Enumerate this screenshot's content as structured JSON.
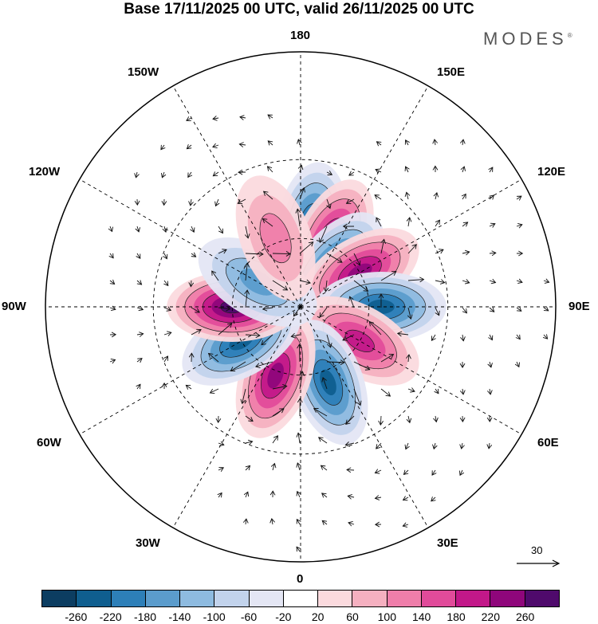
{
  "header": {
    "title": "Base 17/11/2025 00 UTC, valid 26/11/2025 00 UTC",
    "brand": "MODES",
    "brand_mark": "®"
  },
  "map": {
    "projection": "north-polar-stereographic",
    "longitude_labels": {
      "lon_180": "180",
      "lon_150e": "150E",
      "lon_120e": "120E",
      "lon_90e": "90E",
      "lon_60e": "60E",
      "lon_30e": "30E",
      "lon_0": "0",
      "lon_30w": "30W",
      "lon_60w": "60W",
      "lon_90w": "90W",
      "lon_120w": "120W",
      "lon_150w": "150W"
    },
    "anomaly_centres": [
      {
        "sign": "negative",
        "lon_deg": 172,
        "lat_deg": 55,
        "magnitude": -240
      },
      {
        "sign": "positive",
        "lon_deg": 155,
        "lat_deg": 58,
        "magnitude": 240
      },
      {
        "sign": "negative",
        "lon_deg": 140,
        "lat_deg": 67,
        "magnitude": -240
      },
      {
        "sign": "positive",
        "lon_deg": 120,
        "lat_deg": 60,
        "magnitude": 240
      },
      {
        "sign": "negative",
        "lon_deg": 90,
        "lat_deg": 55,
        "magnitude": -240
      },
      {
        "sign": "positive",
        "lon_deg": 60,
        "lat_deg": 60,
        "magnitude": 200
      },
      {
        "sign": "negative",
        "lon_deg": 20,
        "lat_deg": 55,
        "magnitude": -240
      },
      {
        "sign": "positive",
        "lon_deg": -20,
        "lat_deg": 58,
        "magnitude": 240
      },
      {
        "sign": "negative",
        "lon_deg": -60,
        "lat_deg": 60,
        "magnitude": -240
      },
      {
        "sign": "positive",
        "lon_deg": -90,
        "lat_deg": 60,
        "magnitude": 260
      },
      {
        "sign": "negative",
        "lon_deg": -120,
        "lat_deg": 68,
        "magnitude": -140
      },
      {
        "sign": "positive",
        "lon_deg": -160,
        "lat_deg": 58,
        "magnitude": 120
      }
    ]
  },
  "wind_reference": {
    "value": "30"
  },
  "colorbar": {
    "colors": [
      "#0c3d61",
      "#0f5e8f",
      "#2d7fb8",
      "#5b9ccc",
      "#8ebbe0",
      "#c2d3ec",
      "#e4e6f4",
      "#ffffff",
      "#fbdade",
      "#f5b0c0",
      "#ef7eaa",
      "#e14b9a",
      "#c21889",
      "#8f067b",
      "#4f0a6c"
    ],
    "tick_labels": [
      "-260",
      "-220",
      "-180",
      "-140",
      "-100",
      "-60",
      "-20",
      "20",
      "60",
      "100",
      "140",
      "180",
      "220",
      "260"
    ]
  }
}
